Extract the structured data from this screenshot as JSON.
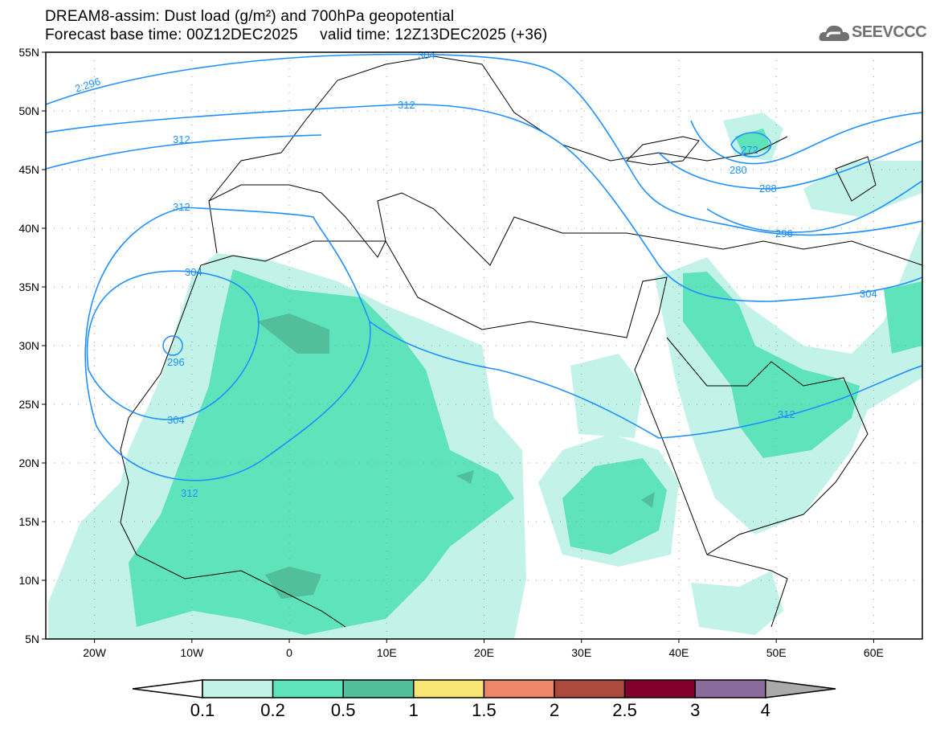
{
  "header": {
    "title_line1": "DREAM8-assim: Dust load (g/m²) and 700hPa geopotential",
    "title_line2": "Forecast base time: 00Z12DEC2025     valid time: 12Z13DEC2025 (+36)",
    "logo_text": "SEEVCCC",
    "logo_icon": "cloud-icon"
  },
  "map": {
    "lat_labels": [
      "55N",
      "50N",
      "45N",
      "40N",
      "35N",
      "30N",
      "25N",
      "20N",
      "15N",
      "10N",
      "5N"
    ],
    "lon_labels": [
      "20W",
      "10W",
      "0",
      "10E",
      "20E",
      "30E",
      "40E",
      "50E",
      "60E"
    ],
    "lon_range": [
      -25,
      65
    ],
    "lat_range": [
      5,
      55
    ],
    "contour_color": "#1e90ff",
    "contour_labels": [
      "2:296",
      "304",
      "312",
      "312",
      "312",
      "304",
      "296",
      "304",
      "312",
      "272",
      "280",
      "288",
      "296",
      "304",
      "312"
    ]
  },
  "colorbar": {
    "labels": [
      "0.1",
      "0.2",
      "0.5",
      "1",
      "1.5",
      "2",
      "2.5",
      "3",
      "4"
    ],
    "colors": [
      "#c3f2e8",
      "#5fe3bb",
      "#52bf9b",
      "#f7e674",
      "#ec8768",
      "#ad4a3f",
      "#82002b",
      "#8b6a9c"
    ],
    "under_color": "#ffffff",
    "over_color": "#aaaaaa"
  }
}
